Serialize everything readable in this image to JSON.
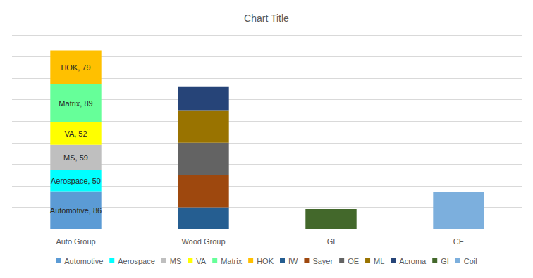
{
  "chart_data": {
    "type": "bar",
    "title": "Chart Title",
    "categories": [
      "Auto Group",
      "Wood Group",
      "GI",
      "CE"
    ],
    "stacked": true,
    "grid": true,
    "legend": "bottom",
    "tick_labels": "x",
    "ylim": [
      0,
      450
    ],
    "yticks": [
      0,
      50,
      100,
      150,
      200,
      250,
      300,
      350,
      400,
      450
    ],
    "series": [
      {
        "name": "Automotive",
        "color": "#5B9BD5",
        "values": [
          86,
          null,
          null,
          null
        ],
        "value_labels": [
          "Automotive, 86",
          null,
          null,
          null
        ]
      },
      {
        "name": "Aerospace",
        "color": "#00FFFF",
        "values": [
          50,
          null,
          null,
          null
        ],
        "value_labels": [
          "Aerospace, 50",
          null,
          null,
          null
        ]
      },
      {
        "name": "MS",
        "color": "#BFBFBF",
        "values": [
          59,
          null,
          null,
          null
        ],
        "value_labels": [
          "MS, 59",
          null,
          null,
          null
        ]
      },
      {
        "name": "VA",
        "color": "#FFFF00",
        "values": [
          52,
          null,
          null,
          null
        ],
        "value_labels": [
          "VA, 52",
          null,
          null,
          null
        ]
      },
      {
        "name": "Matrix",
        "color": "#66FF99",
        "values": [
          89,
          null,
          null,
          null
        ],
        "value_labels": [
          "Matrix, 89",
          null,
          null,
          null
        ]
      },
      {
        "name": "HOK",
        "color": "#FFC000",
        "values": [
          79,
          null,
          null,
          null
        ],
        "value_labels": [
          "HOK, 79",
          null,
          null,
          null
        ]
      },
      {
        "name": "IW",
        "color": "#255E91",
        "values": [
          null,
          50,
          null,
          null
        ]
      },
      {
        "name": "Sayer",
        "color": "#9E480E",
        "values": [
          null,
          75,
          null,
          null
        ]
      },
      {
        "name": "OE",
        "color": "#636363",
        "values": [
          null,
          75,
          null,
          null
        ]
      },
      {
        "name": "ML",
        "color": "#997300",
        "values": [
          null,
          74,
          null,
          null
        ]
      },
      {
        "name": "Acroma",
        "color": "#264478",
        "values": [
          null,
          57,
          null,
          null
        ]
      },
      {
        "name": "GI",
        "color": "#43682B",
        "values": [
          null,
          null,
          46,
          null
        ]
      },
      {
        "name": "Coil",
        "color": "#7CAFDD",
        "values": [
          null,
          null,
          null,
          85
        ]
      }
    ]
  }
}
